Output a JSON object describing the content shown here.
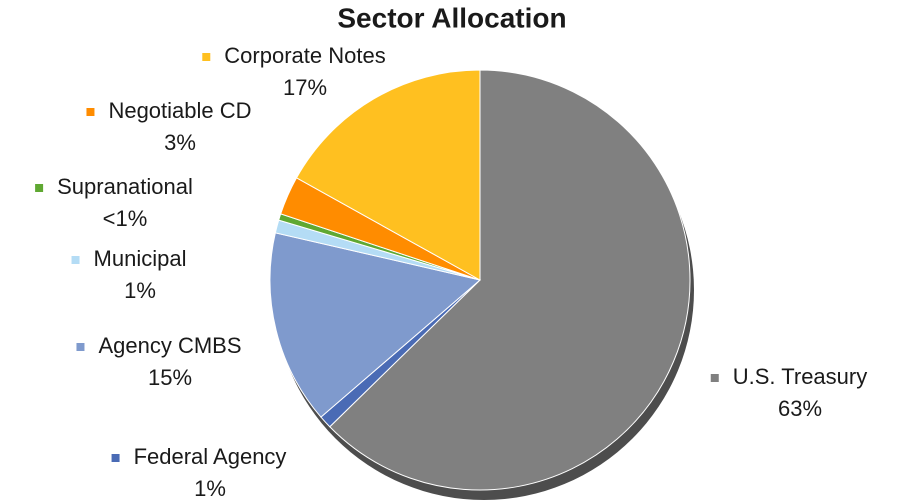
{
  "chart_data": {
    "type": "pie",
    "title": "Sector Allocation",
    "categories": [
      "U.S. Treasury",
      "Federal Agency",
      "Agency CMBS",
      "Municipal",
      "Supranational",
      "Negotiable CD",
      "Corporate Notes"
    ],
    "values": [
      63,
      1,
      15,
      1,
      0.5,
      3,
      17
    ],
    "value_labels": [
      "63%",
      "1%",
      "15%",
      "1%",
      "<1%",
      "3%",
      "17%"
    ],
    "colors": [
      "#808080",
      "#4a6bb5",
      "#7f9acd",
      "#b4dcf5",
      "#5fa832",
      "#ff8c00",
      "#ffc020"
    ]
  }
}
